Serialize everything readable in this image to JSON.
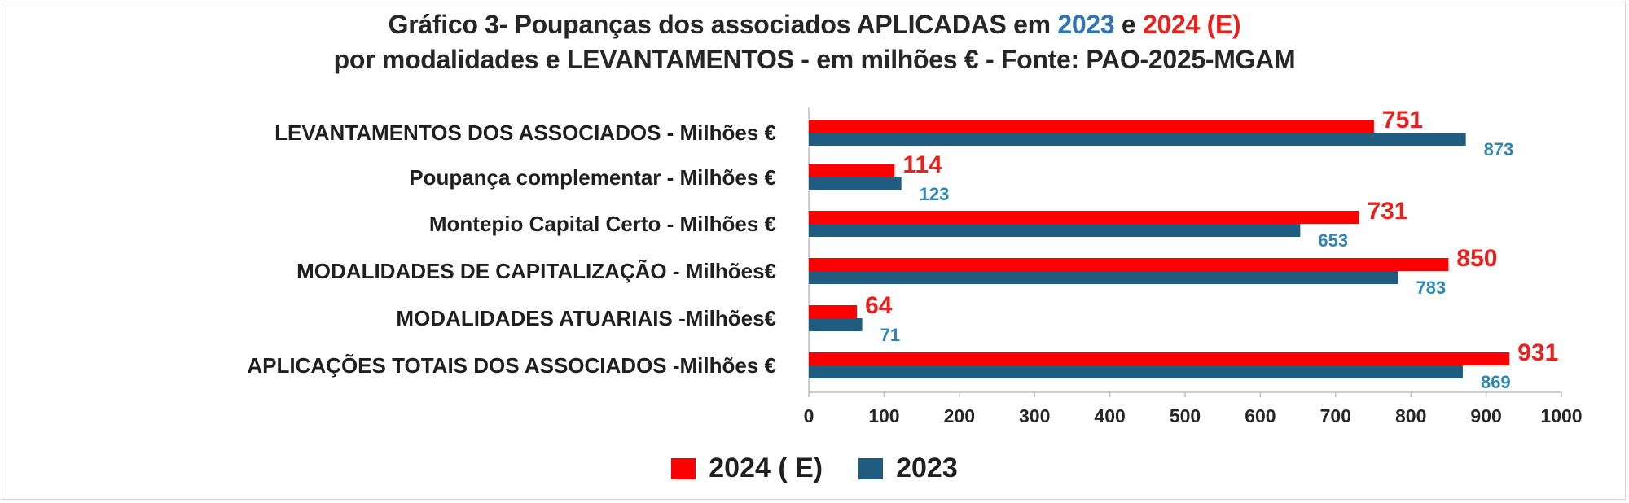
{
  "title": {
    "line1_a": "Gráfico 3- Poupanças dos associados APLICADAS  em ",
    "line1_b": "2023",
    "line1_c": " e ",
    "line1_d": "2024 (E)",
    "line2": "por modalidades e LEVANTAMENTOS - em milhões € -  Fonte: PAO-2025-MGAM"
  },
  "colors": {
    "series_2024": "#ff0000",
    "series_2023": "#1f5c80",
    "label_2024": "#e8211f",
    "label_2023": "#2e86b5",
    "axis": "#bfbfbf"
  },
  "chart_data": {
    "type": "bar",
    "orientation": "horizontal",
    "categories": [
      "LEVANTAMENTOS DOS ASSOCIADOS - Milhões €",
      "Poupança complementar - Milhões €",
      "Montepio Capital Certo - Milhões €",
      "MODALIDADES DE CAPITALIZAÇÃO - Milhões€",
      "MODALIDADES ATUARIAIS -Milhões€",
      "APLICAÇÕES TOTAIS DOS ASSOCIADOS  -Milhões €"
    ],
    "series": [
      {
        "name": "2024 ( E)",
        "values": [
          751,
          114,
          731,
          850,
          64,
          931
        ]
      },
      {
        "name": "2023",
        "values": [
          873,
          123,
          653,
          783,
          71,
          869
        ]
      }
    ],
    "xlim": [
      0,
      1000
    ],
    "xticks": [
      "0",
      "100",
      "200",
      "300",
      "400",
      "500",
      "600",
      "700",
      "800",
      "900",
      "1000"
    ],
    "grid": false,
    "legend_position": "bottom"
  }
}
